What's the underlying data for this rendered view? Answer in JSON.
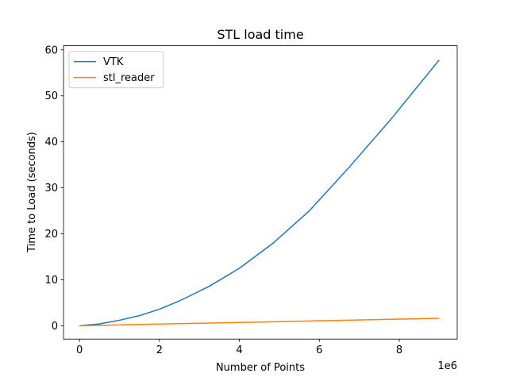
{
  "chart_data": {
    "type": "line",
    "title": "STL load time",
    "xlabel": "Number of Points",
    "ylabel": "Time to Load (seconds)",
    "x_offset_label": "1e6",
    "xlim": [
      -400000,
      9450000
    ],
    "ylim": [
      -2.9,
      60.9
    ],
    "x_ticks": [
      0,
      2000000,
      4000000,
      6000000,
      8000000
    ],
    "x_tick_labels": [
      "0",
      "2",
      "4",
      "6",
      "8"
    ],
    "y_ticks": [
      0,
      10,
      20,
      30,
      40,
      50,
      60
    ],
    "y_tick_labels": [
      "0",
      "10",
      "20",
      "30",
      "40",
      "50",
      "60"
    ],
    "grid": false,
    "legend_position": "top-left",
    "series": [
      {
        "name": "VTK",
        "color": "#1f77b4",
        "x": [
          0,
          500000,
          1000000,
          1500000,
          2000000,
          2500000,
          3250000,
          4000000,
          4850000,
          5750000,
          6700000,
          7800000,
          9000000
        ],
        "y": [
          0.0,
          0.4,
          1.2,
          2.2,
          3.6,
          5.4,
          8.6,
          12.5,
          18.0,
          25.0,
          34.0,
          45.0,
          57.8
        ]
      },
      {
        "name": "stl_reader",
        "color": "#ff7f0e",
        "x": [
          0,
          1000000,
          2000000,
          3000000,
          4000000,
          5000000,
          6000000,
          7000000,
          8000000,
          9000000
        ],
        "y": [
          0.0,
          0.18,
          0.36,
          0.54,
          0.72,
          0.9,
          1.08,
          1.26,
          1.44,
          1.62
        ]
      }
    ]
  }
}
